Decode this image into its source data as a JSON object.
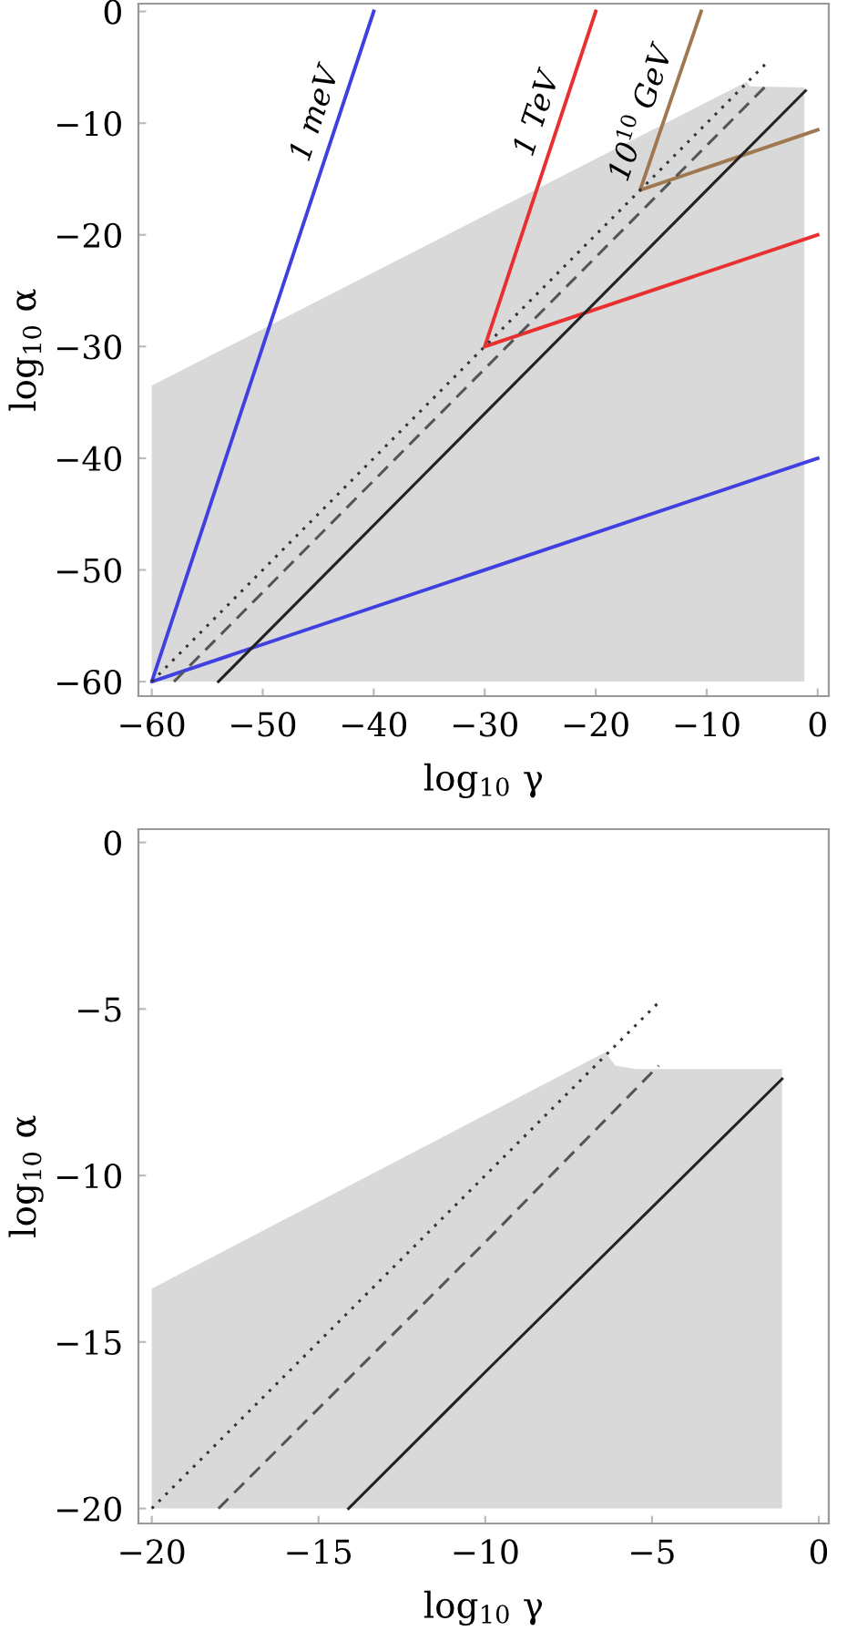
{
  "chart_data": [
    {
      "type": "line",
      "xlabel": "log$_{10}$ γ",
      "ylabel": "log$_{10}$ α",
      "xlim": [
        -61.2,
        1
      ],
      "ylim": [
        -61.3,
        0.7
      ],
      "xticks": [
        {
          "value": -60,
          "label": "−60"
        },
        {
          "value": -50,
          "label": "−50"
        },
        {
          "value": -40,
          "label": "−40"
        },
        {
          "value": -30,
          "label": "−30"
        },
        {
          "value": -20,
          "label": "−20"
        },
        {
          "value": -10,
          "label": "−10"
        },
        0
      ],
      "yticks": [
        {
          "value": -60,
          "label": "−60"
        },
        {
          "value": -50,
          "label": "−50"
        },
        {
          "value": -40,
          "label": "−40"
        },
        {
          "value": -30,
          "label": "−30"
        },
        {
          "value": -20,
          "label": "−20"
        },
        {
          "value": -10,
          "label": "−10"
        },
        0
      ],
      "grid": false,
      "legend": false,
      "series": [
        {
          "type": "area",
          "color": "#d9d9d9",
          "x": [
            -60,
            -6.4,
            -6.1,
            -1.2,
            -1.2,
            -60
          ],
          "values": [
            -33.5,
            -6.3,
            -6.7,
            -6.8,
            -60,
            -60
          ]
        },
        {
          "type": "line",
          "name": "1 meV",
          "color": "#4040e0",
          "line_style": "solid",
          "x": [
            -40,
            -60,
            0
          ],
          "values": [
            0,
            -60,
            -40
          ]
        },
        {
          "type": "line",
          "name": "1 TeV",
          "color": "#e83030",
          "line_style": "solid",
          "x": [
            -20,
            -30,
            0
          ],
          "values": [
            0,
            -30,
            -20
          ]
        },
        {
          "type": "line",
          "name": "10$^{10}$ GeV",
          "color": "#a07850",
          "line_style": "solid",
          "x": [
            -10.5,
            -16,
            0
          ],
          "values": [
            0,
            -16,
            -10.6
          ]
        },
        {
          "color": "#333333",
          "line_style": "dotted",
          "x": [
            -60,
            -4.7
          ],
          "values": [
            -60,
            -4.7
          ]
        },
        {
          "type": "line",
          "color": "#555555",
          "line_style": "dashed",
          "x": [
            -58,
            -30,
            -4.7
          ],
          "values": [
            -60,
            -32,
            -6.7
          ]
        },
        {
          "type": "line",
          "color": "#222222",
          "line_style": "solid",
          "x": [
            -54,
            -30,
            -1.1
          ],
          "values": [
            -60,
            -36,
            -7.1
          ]
        }
      ]
    },
    {
      "type": "line",
      "xlabel": "log$_{10}$ γ",
      "ylabel": "log$_{10}$ α",
      "xlim": [
        -20.4,
        0.3
      ],
      "ylim": [
        -20.45,
        0.4
      ],
      "xticks": [
        {
          "value": -20,
          "label": "−20"
        },
        {
          "value": -15,
          "label": "−15"
        },
        {
          "value": -10,
          "label": "−10"
        },
        {
          "value": -5,
          "label": "−5"
        },
        0
      ],
      "yticks": [
        {
          "value": -20,
          "label": "−20"
        },
        {
          "value": -15,
          "label": "−15"
        },
        {
          "value": -10,
          "label": "−10"
        },
        {
          "value": -5,
          "label": "−5"
        },
        0
      ],
      "grid": false,
      "legend": false,
      "series": [
        {
          "type": "area",
          "color": "#d9d9d9",
          "x": [
            -20,
            -6.4,
            -6.1,
            -5.5,
            -1.1,
            -1.1,
            -20
          ],
          "values": [
            -13.4,
            -6.3,
            -6.7,
            -6.8,
            -6.8,
            -20,
            -20
          ]
        },
        {
          "color": "#333333",
          "line_style": "dotted",
          "x": [
            -20,
            -4.8
          ],
          "values": [
            -20,
            -4.8
          ]
        },
        {
          "type": "line",
          "color": "#555555",
          "line_style": "dashed",
          "x": [
            -18,
            -10,
            -4.8
          ],
          "values": [
            -20,
            -12,
            -6.7
          ]
        },
        {
          "type": "line",
          "color": "#222222",
          "line_style": "solid",
          "x": [
            -14.1,
            -10,
            -1.1
          ],
          "values": [
            -20,
            -15.9,
            -7.1
          ]
        }
      ]
    }
  ]
}
